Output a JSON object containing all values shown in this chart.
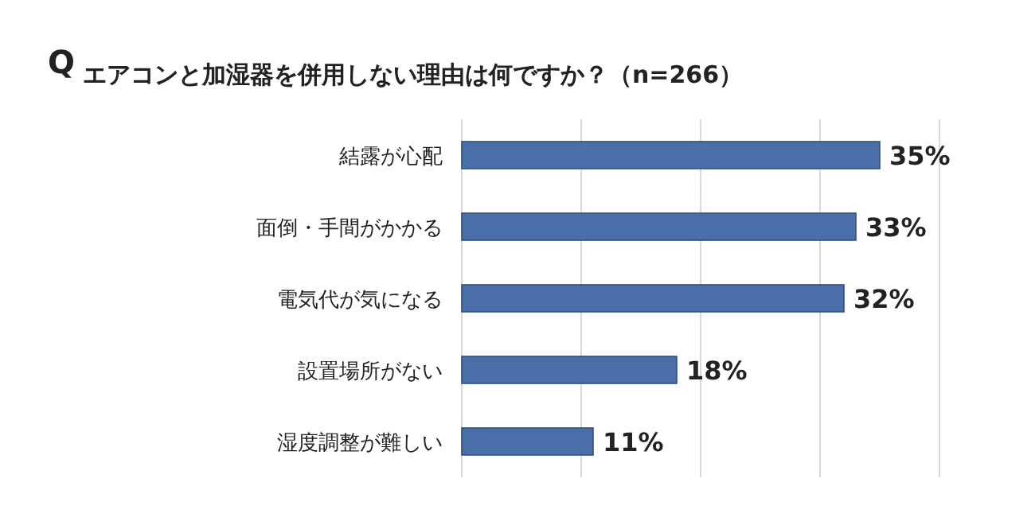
{
  "chart_data": {
    "type": "bar",
    "orientation": "horizontal",
    "title": "エアコンと加湿器を併用しない理由は何ですか？（n=266）",
    "annotations": [
      "Q"
    ],
    "categories": [
      "結露が心配",
      "面倒・手間がかかる",
      "電気代が気になる",
      "設置場所がない",
      "湿度調整が難しい"
    ],
    "values": [
      35,
      33,
      32,
      18,
      11
    ],
    "value_labels": [
      "35%",
      "33%",
      "32%",
      "18%",
      "11%"
    ],
    "color": "#4a6ea8",
    "xlim": [
      0,
      40
    ],
    "xticks": [
      {
        "value": 0,
        "label": null
      },
      {
        "value": 10,
        "label": null
      },
      {
        "value": 20,
        "label": null
      },
      {
        "value": 30,
        "label": null
      },
      {
        "value": 40,
        "label": null
      }
    ],
    "tick_labels": "y",
    "grid": "x"
  }
}
